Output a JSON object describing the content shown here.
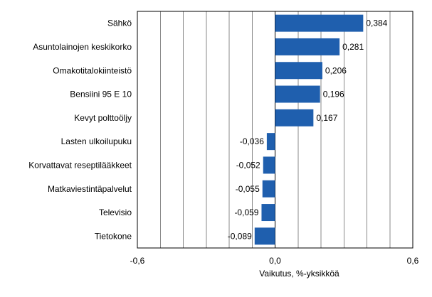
{
  "chart_data": {
    "type": "bar",
    "orientation": "horizontal",
    "title": "",
    "xlabel": "Vaikutus, %-yksikköä",
    "ylabel": "",
    "xlim": [
      -0.6,
      0.6
    ],
    "grid_step": 0.1,
    "grid": true,
    "bar_color": "#1f5fae",
    "tick_values": [
      -0.6,
      0.0,
      0.6
    ],
    "tick_labels": [
      "-0,6",
      "0,0",
      "0,6"
    ],
    "categories": [
      "Sähkö",
      "Asuntolainojen keskikorko",
      "Omakotitalokiinteistö",
      "Bensiini 95 E 10",
      "Kevyt polttoöljy",
      "Lasten ulkoilupuku",
      "Korvattavat reseptilääkkeet",
      "Matkaviestintäpalvelut",
      "Televisio",
      "Tietokone"
    ],
    "values": [
      0.384,
      0.281,
      0.206,
      0.196,
      0.167,
      -0.036,
      -0.052,
      -0.055,
      -0.059,
      -0.089
    ],
    "value_labels": [
      "0,384",
      "0,281",
      "0,206",
      "0,196",
      "0,167",
      "-0,036",
      "-0,052",
      "-0,055",
      "-0,059",
      "-0,089"
    ]
  }
}
